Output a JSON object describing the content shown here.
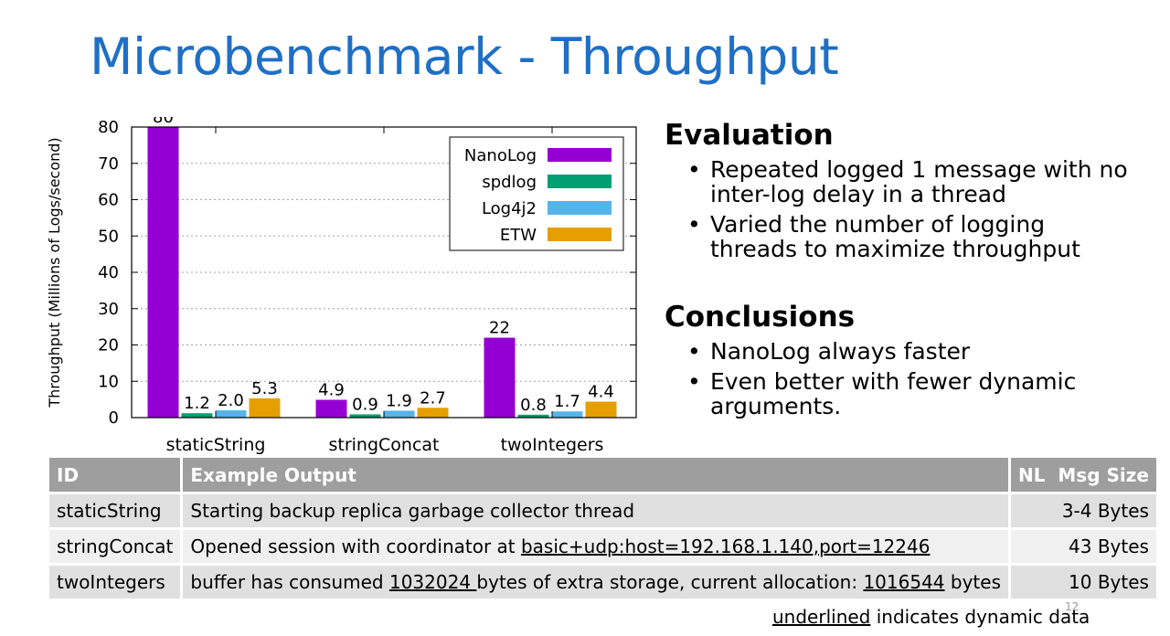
{
  "slide": {
    "title": "Microbenchmark - Throughput",
    "page_number": "12"
  },
  "evaluation": {
    "heading": "Evaluation",
    "bullets": [
      "Repeated logged 1 message with no inter-log delay in a thread",
      "Varied the number of logging threads to maximize throughput"
    ]
  },
  "conclusions": {
    "heading": "Conclusions",
    "bullets": [
      "NanoLog always faster",
      "Even better with fewer dynamic arguments."
    ]
  },
  "table": {
    "headers": [
      "ID",
      "Example Output",
      "NL  Msg Size"
    ],
    "rows": [
      {
        "id": "staticString",
        "output": [
          {
            "text": "Starting backup replica garbage collector thread",
            "dynamic": false
          }
        ],
        "size": "3-4 Bytes"
      },
      {
        "id": "stringConcat",
        "output": [
          {
            "text": "Opened session with coordinator at ",
            "dynamic": false
          },
          {
            "text": "basic+udp:host=192.168.1.140,port=12246",
            "dynamic": true
          }
        ],
        "size": "43 Bytes"
      },
      {
        "id": "twoIntegers",
        "output": [
          {
            "text": "buffer has consumed ",
            "dynamic": false
          },
          {
            "text": "1032024 ",
            "dynamic": true
          },
          {
            "text": "bytes of extra storage, current allocation: ",
            "dynamic": false
          },
          {
            "text": "1016544",
            "dynamic": true
          },
          {
            "text": " bytes",
            "dynamic": false
          }
        ],
        "size": "10 Bytes"
      }
    ]
  },
  "footnote": {
    "underlined": "underlined",
    "rest": " indicates dynamic data"
  },
  "chart_data": {
    "type": "bar",
    "ylabel": "Throughput (Millions of Logs/second)",
    "xlabel": "",
    "ylim": [
      0,
      80
    ],
    "yticks": [
      0,
      10,
      20,
      30,
      40,
      50,
      60,
      70,
      80
    ],
    "grid": true,
    "legend_position": "top-right",
    "categories": [
      "staticString",
      "stringConcat",
      "twoIntegers"
    ],
    "series": [
      {
        "name": "NanoLog",
        "color": "#9400d3",
        "values": [
          80,
          4.9,
          22
        ],
        "labels": [
          "80",
          "4.9",
          "22"
        ]
      },
      {
        "name": "spdlog",
        "color": "#009e73",
        "values": [
          1.2,
          0.9,
          0.8
        ],
        "labels": [
          "1.2",
          "0.9",
          "0.8"
        ]
      },
      {
        "name": "Log4j2",
        "color": "#56b4e9",
        "values": [
          2.0,
          1.9,
          1.7
        ],
        "labels": [
          "2.0",
          "1.9",
          "1.7"
        ]
      },
      {
        "name": "ETW",
        "color": "#e69f00",
        "values": [
          5.3,
          2.7,
          4.4
        ],
        "labels": [
          "5.3",
          "2.7",
          "4.4"
        ]
      }
    ]
  }
}
